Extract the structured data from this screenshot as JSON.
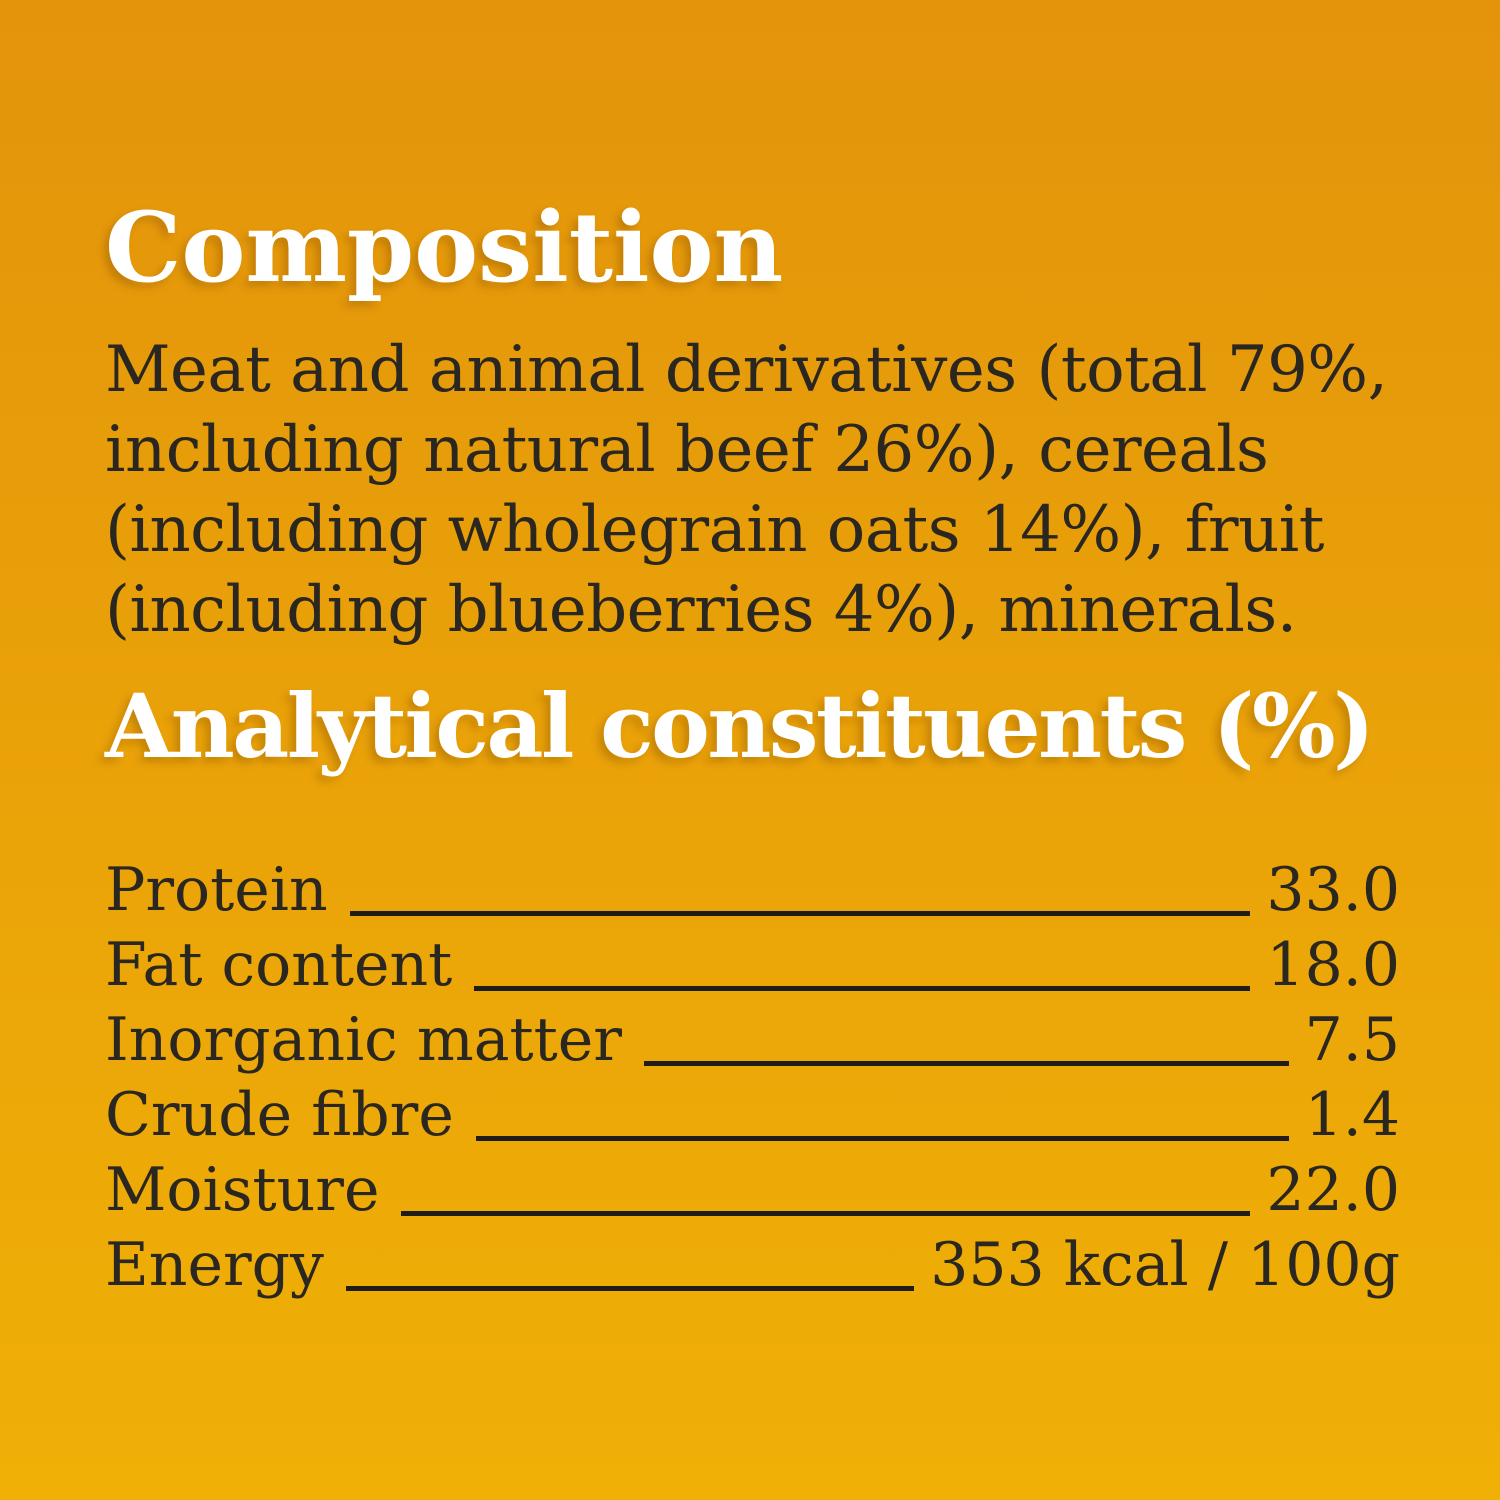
{
  "colors": {
    "bg_top": "#e3940b",
    "bg_bottom": "#f0b006",
    "heading": "#ffffff",
    "text": "#2a2620",
    "rule": "#201d16"
  },
  "composition": {
    "heading": "Composition",
    "lines": [
      "Meat and animal derivatives (total 79%,",
      "including natural beef 26%), cereals",
      "(including wholegrain oats 14%), fruit",
      "(including blueberries 4%), minerals."
    ]
  },
  "analytical": {
    "heading": "Analytical constituents (%)"
  },
  "table": {
    "rows": [
      {
        "label": "Protein",
        "value": "33.0"
      },
      {
        "label": "Fat content",
        "value": "18.0"
      },
      {
        "label": "Inorganic matter",
        "value": "7.5"
      },
      {
        "label": "Crude fibre",
        "value": "1.4"
      },
      {
        "label": "Moisture",
        "value": "22.0"
      },
      {
        "label": "Energy",
        "value": "353 kcal / 100g"
      }
    ]
  }
}
